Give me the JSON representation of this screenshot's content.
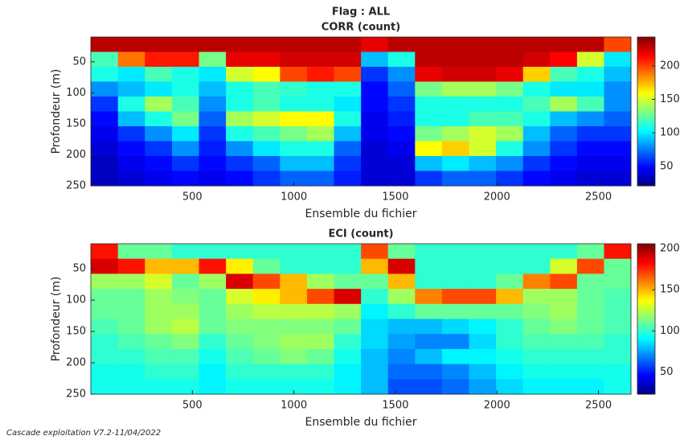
{
  "title": "Flag : ALL",
  "footer": "Cascade exploitation V7.2-11/04/2022",
  "chart_data": [
    {
      "type": "heatmap",
      "title": "CORR (count)",
      "xlabel": "Ensemble du fichier",
      "ylabel": "Profondeur (m)",
      "colormap": "jet",
      "y_inverted": true,
      "xlim": [
        0,
        2660
      ],
      "ylim": [
        10,
        250
      ],
      "xticks": [
        500,
        1000,
        1500,
        2000,
        2500
      ],
      "yticks": [
        50,
        100,
        150,
        200,
        250
      ],
      "clim": [
        21,
        243
      ],
      "cticks": [
        50,
        100,
        150,
        200
      ],
      "x": [
        67,
        200,
        333,
        466,
        599,
        732,
        865,
        998,
        1131,
        1264,
        1397,
        1530,
        1663,
        1796,
        1929,
        2062,
        2195,
        2328,
        2461,
        2594
      ],
      "y": [
        22,
        46,
        70,
        94,
        118,
        142,
        166,
        190,
        214,
        238
      ],
      "z": [
        [
          230,
          230,
          230,
          230,
          230,
          230,
          230,
          230,
          230,
          230,
          220,
          230,
          230,
          230,
          230,
          230,
          230,
          230,
          230,
          200
        ],
        [
          120,
          190,
          210,
          210,
          130,
          220,
          220,
          225,
          225,
          225,
          90,
          110,
          230,
          230,
          230,
          230,
          225,
          215,
          150,
          100
        ],
        [
          110,
          100,
          120,
          110,
          100,
          150,
          160,
          200,
          210,
          200,
          60,
          80,
          220,
          225,
          225,
          220,
          170,
          120,
          110,
          90
        ],
        [
          80,
          90,
          100,
          110,
          90,
          110,
          120,
          115,
          110,
          110,
          50,
          70,
          130,
          140,
          140,
          130,
          110,
          100,
          100,
          80
        ],
        [
          60,
          110,
          140,
          120,
          80,
          110,
          120,
          110,
          110,
          100,
          50,
          60,
          110,
          110,
          110,
          110,
          120,
          140,
          120,
          80
        ],
        [
          50,
          90,
          110,
          130,
          70,
          140,
          150,
          160,
          160,
          110,
          45,
          55,
          110,
          110,
          120,
          120,
          110,
          90,
          80,
          70
        ],
        [
          45,
          60,
          80,
          100,
          60,
          110,
          120,
          130,
          140,
          90,
          45,
          50,
          130,
          140,
          150,
          140,
          90,
          70,
          60,
          60
        ],
        [
          40,
          50,
          60,
          80,
          55,
          80,
          100,
          110,
          110,
          70,
          40,
          45,
          160,
          170,
          150,
          110,
          80,
          60,
          50,
          50
        ],
        [
          35,
          45,
          50,
          60,
          50,
          60,
          70,
          90,
          90,
          60,
          40,
          40,
          90,
          100,
          90,
          80,
          60,
          50,
          45,
          45
        ],
        [
          35,
          40,
          45,
          50,
          45,
          50,
          60,
          70,
          70,
          55,
          40,
          40,
          60,
          70,
          70,
          60,
          50,
          45,
          40,
          40
        ]
      ]
    },
    {
      "type": "heatmap",
      "title": "ECI (count)",
      "xlabel": "Ensemble du fichier",
      "ylabel": "Profondeur (m)",
      "colormap": "jet",
      "y_inverted": true,
      "xlim": [
        0,
        2660
      ],
      "ylim": [
        10,
        250
      ],
      "xticks": [
        500,
        1000,
        1500,
        2000,
        2500
      ],
      "yticks": [
        50,
        100,
        150,
        200,
        250
      ],
      "clim": [
        23,
        206
      ],
      "cticks": [
        50,
        100,
        150,
        200
      ],
      "x": [
        67,
        200,
        333,
        466,
        599,
        732,
        865,
        998,
        1131,
        1264,
        1397,
        1530,
        1663,
        1796,
        1929,
        2062,
        2195,
        2328,
        2461,
        2594
      ],
      "y": [
        22,
        46,
        70,
        94,
        118,
        142,
        166,
        190,
        214,
        238
      ],
      "z": [
        [
          180,
          110,
          110,
          100,
          100,
          100,
          100,
          100,
          100,
          100,
          170,
          110,
          100,
          100,
          100,
          100,
          100,
          100,
          110,
          180
        ],
        [
          190,
          180,
          150,
          150,
          180,
          140,
          110,
          100,
          100,
          100,
          150,
          190,
          100,
          100,
          100,
          100,
          100,
          130,
          170,
          110
        ],
        [
          120,
          120,
          130,
          110,
          120,
          190,
          170,
          150,
          120,
          110,
          110,
          150,
          100,
          100,
          100,
          110,
          160,
          170,
          110,
          110
        ],
        [
          110,
          110,
          120,
          115,
          110,
          130,
          140,
          150,
          170,
          190,
          100,
          120,
          160,
          170,
          170,
          150,
          120,
          120,
          110,
          105
        ],
        [
          110,
          110,
          120,
          120,
          110,
          120,
          125,
          125,
          125,
          120,
          90,
          100,
          110,
          110,
          110,
          110,
          115,
          120,
          110,
          105
        ],
        [
          105,
          110,
          120,
          125,
          110,
          115,
          115,
          115,
          115,
          110,
          85,
          80,
          80,
          85,
          90,
          100,
          110,
          115,
          110,
          105
        ],
        [
          100,
          105,
          110,
          115,
          100,
          110,
          115,
          120,
          120,
          100,
          85,
          75,
          70,
          70,
          85,
          100,
          105,
          105,
          105,
          100
        ],
        [
          100,
          100,
          105,
          105,
          95,
          105,
          110,
          115,
          110,
          95,
          80,
          70,
          80,
          90,
          90,
          95,
          100,
          100,
          100,
          100
        ],
        [
          95,
          95,
          100,
          100,
          90,
          100,
          100,
          100,
          100,
          90,
          80,
          65,
          65,
          70,
          80,
          90,
          95,
          95,
          95,
          95
        ],
        [
          95,
          95,
          95,
          95,
          90,
          95,
          95,
          95,
          95,
          90,
          80,
          60,
          60,
          65,
          75,
          85,
          90,
          90,
          90,
          95
        ]
      ]
    }
  ]
}
